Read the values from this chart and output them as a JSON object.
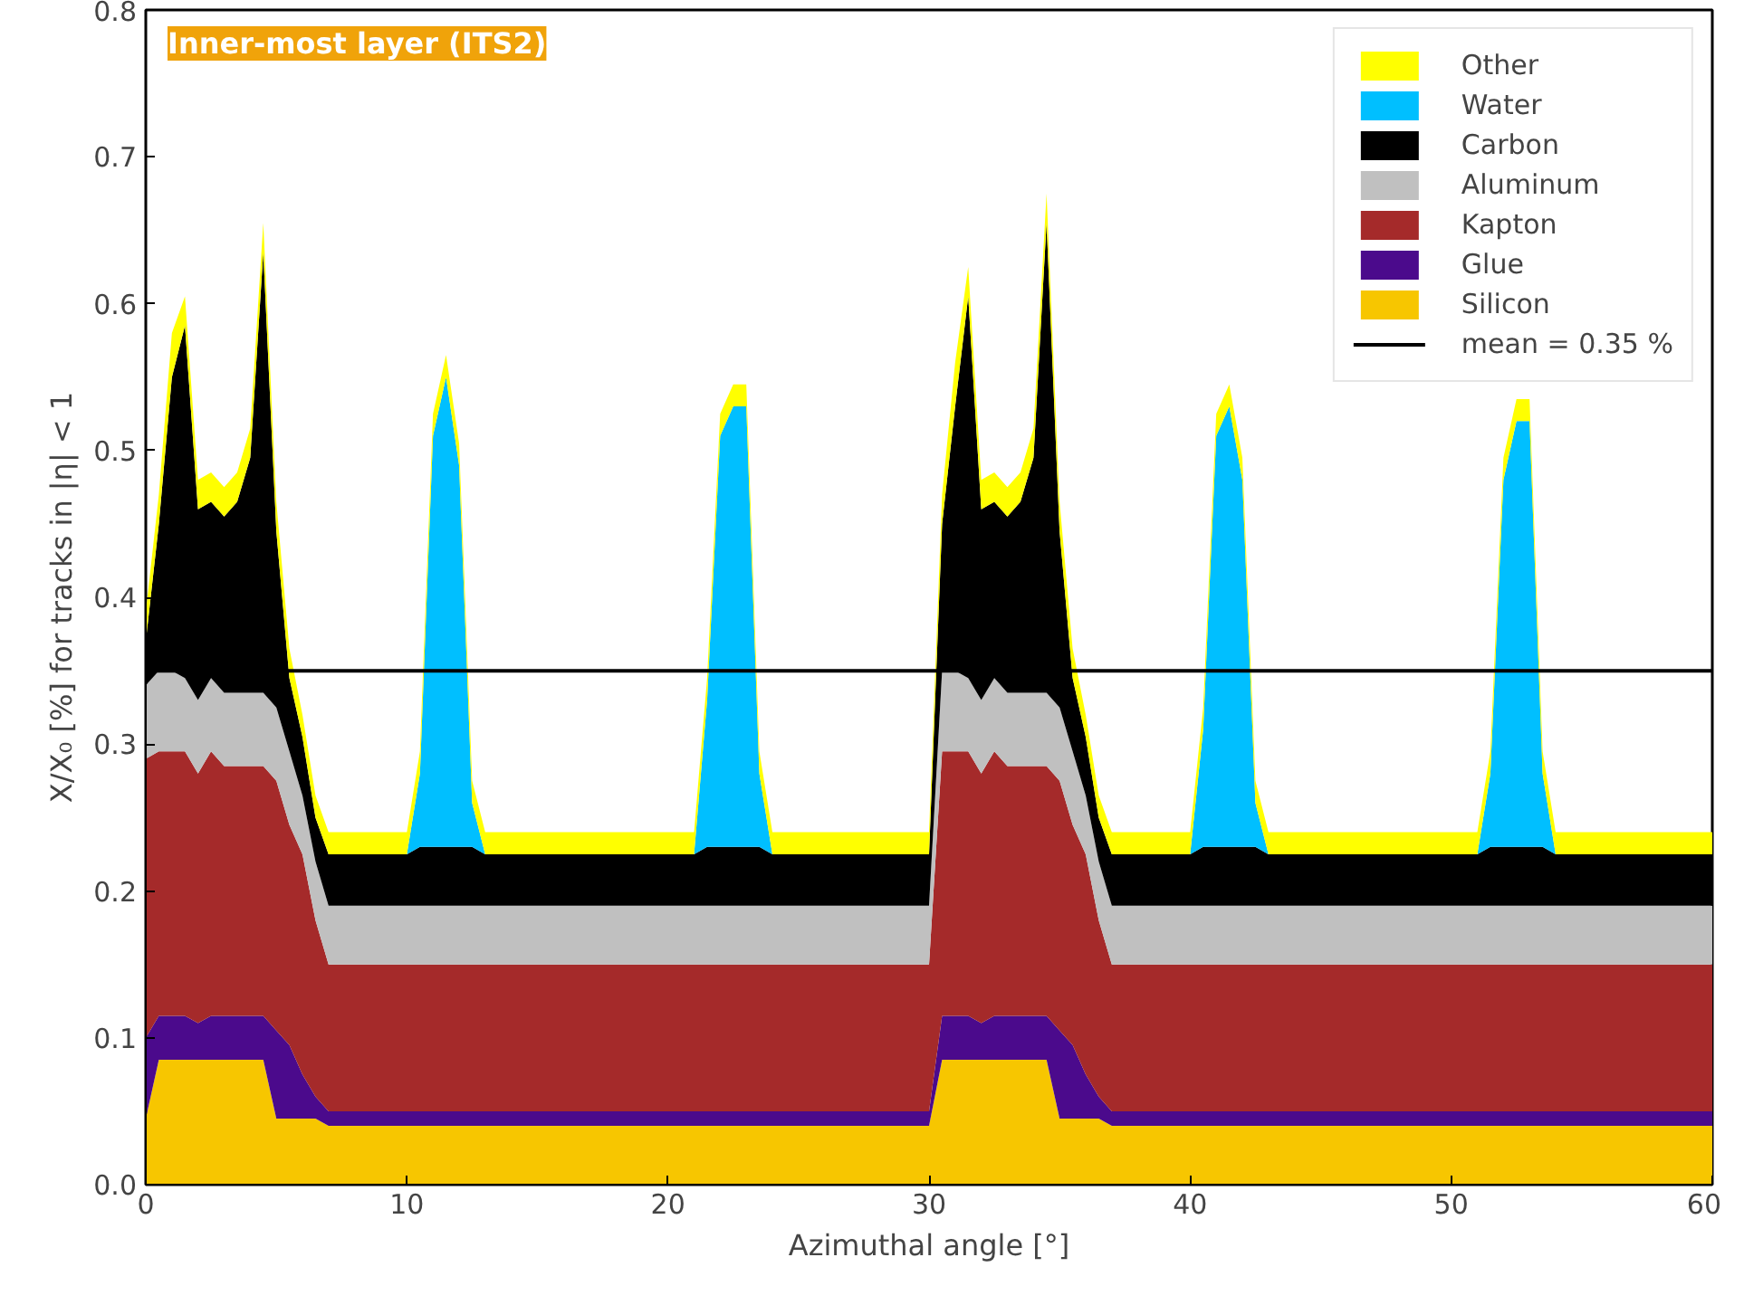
{
  "chart_data": {
    "type": "area",
    "stacked": true,
    "xlabel": "Azimuthal angle [°]",
    "ylabel": "X/X₀ [%] for tracks in |η| < 1",
    "annotations": [
      "Inner-most layer (ITS2)"
    ],
    "xlim": [
      0,
      60
    ],
    "ylim": [
      0,
      0.8
    ],
    "xticks": [
      0,
      10,
      20,
      30,
      40,
      50,
      60
    ],
    "yticks": [
      {
        "value": 0,
        "label": "0.0"
      },
      {
        "value": 0.1,
        "label": "0.1"
      },
      {
        "value": 0.2,
        "label": "0.2"
      },
      {
        "value": 0.3,
        "label": "0.3"
      },
      {
        "value": 0.4,
        "label": "0.4"
      },
      {
        "value": 0.5,
        "label": "0.5"
      },
      {
        "value": 0.6,
        "label": "0.6"
      },
      {
        "value": 0.7,
        "label": "0.7"
      },
      {
        "value": 0.8,
        "label": "0.8"
      }
    ],
    "grid": false,
    "legend": "top right",
    "ref_lines": [
      {
        "axis": "y",
        "value": 0.35,
        "label": "mean = 0.35 %",
        "color": "#000000",
        "line_style": "solid"
      }
    ],
    "x": [
      0,
      0.5,
      1,
      1.5,
      2,
      2.5,
      3,
      3.5,
      4,
      4.5,
      5,
      5.5,
      6,
      6.5,
      7,
      8,
      9,
      10,
      10.5,
      11,
      11.5,
      12,
      12.5,
      13,
      14,
      15,
      16,
      17,
      18,
      19,
      20,
      21,
      21.5,
      22,
      22.5,
      23,
      23.5,
      24,
      25,
      26,
      27,
      28,
      29,
      30,
      30.5,
      31,
      31.5,
      32,
      32.5,
      33,
      33.5,
      34,
      34.5,
      35,
      35.5,
      36,
      36.5,
      37,
      38,
      39,
      40,
      40.5,
      41,
      41.5,
      42,
      42.5,
      43,
      44,
      45,
      46,
      47,
      48,
      49,
      50,
      51,
      51.5,
      52,
      52.5,
      53,
      53.5,
      54,
      55,
      56,
      57,
      58,
      59,
      60
    ],
    "series": [
      {
        "name": "Silicon",
        "color": "#f7c600",
        "values": [
          0.045,
          0.085,
          0.085,
          0.085,
          0.085,
          0.085,
          0.085,
          0.085,
          0.085,
          0.085,
          0.045,
          0.045,
          0.045,
          0.045,
          0.04,
          0.04,
          0.04,
          0.04,
          0.04,
          0.04,
          0.04,
          0.04,
          0.04,
          0.04,
          0.04,
          0.04,
          0.04,
          0.04,
          0.04,
          0.04,
          0.04,
          0.04,
          0.04,
          0.04,
          0.04,
          0.04,
          0.04,
          0.04,
          0.04,
          0.04,
          0.04,
          0.04,
          0.04,
          0.04,
          0.085,
          0.085,
          0.085,
          0.085,
          0.085,
          0.085,
          0.085,
          0.085,
          0.085,
          0.045,
          0.045,
          0.045,
          0.045,
          0.04,
          0.04,
          0.04,
          0.04,
          0.04,
          0.04,
          0.04,
          0.04,
          0.04,
          0.04,
          0.04,
          0.04,
          0.04,
          0.04,
          0.04,
          0.04,
          0.04,
          0.04,
          0.04,
          0.04,
          0.04,
          0.04,
          0.04,
          0.04,
          0.04,
          0.04,
          0.04,
          0.04,
          0.04,
          0.04
        ]
      },
      {
        "name": "Glue",
        "color": "#4b0a8c",
        "values": [
          0.055,
          0.03,
          0.03,
          0.03,
          0.025,
          0.03,
          0.03,
          0.03,
          0.03,
          0.03,
          0.06,
          0.05,
          0.03,
          0.015,
          0.01,
          0.01,
          0.01,
          0.01,
          0.01,
          0.01,
          0.01,
          0.01,
          0.01,
          0.01,
          0.01,
          0.01,
          0.01,
          0.01,
          0.01,
          0.01,
          0.01,
          0.01,
          0.01,
          0.01,
          0.01,
          0.01,
          0.01,
          0.01,
          0.01,
          0.01,
          0.01,
          0.01,
          0.01,
          0.01,
          0.03,
          0.03,
          0.03,
          0.025,
          0.03,
          0.03,
          0.03,
          0.03,
          0.03,
          0.06,
          0.05,
          0.03,
          0.015,
          0.01,
          0.01,
          0.01,
          0.01,
          0.01,
          0.01,
          0.01,
          0.01,
          0.01,
          0.01,
          0.01,
          0.01,
          0.01,
          0.01,
          0.01,
          0.01,
          0.01,
          0.01,
          0.01,
          0.01,
          0.01,
          0.01,
          0.01,
          0.01,
          0.01,
          0.01,
          0.01,
          0.01,
          0.01,
          0.01
        ]
      },
      {
        "name": "Kapton",
        "color": "#a52a2a",
        "values": [
          0.19,
          0.18,
          0.18,
          0.18,
          0.17,
          0.18,
          0.17,
          0.17,
          0.17,
          0.17,
          0.17,
          0.15,
          0.15,
          0.12,
          0.1,
          0.1,
          0.1,
          0.1,
          0.1,
          0.1,
          0.1,
          0.1,
          0.1,
          0.1,
          0.1,
          0.1,
          0.1,
          0.1,
          0.1,
          0.1,
          0.1,
          0.1,
          0.1,
          0.1,
          0.1,
          0.1,
          0.1,
          0.1,
          0.1,
          0.1,
          0.1,
          0.1,
          0.1,
          0.1,
          0.18,
          0.18,
          0.18,
          0.17,
          0.18,
          0.17,
          0.17,
          0.17,
          0.17,
          0.17,
          0.15,
          0.15,
          0.12,
          0.1,
          0.1,
          0.1,
          0.1,
          0.1,
          0.1,
          0.1,
          0.1,
          0.1,
          0.1,
          0.1,
          0.1,
          0.1,
          0.1,
          0.1,
          0.1,
          0.1,
          0.1,
          0.1,
          0.1,
          0.1,
          0.1,
          0.1,
          0.1,
          0.1,
          0.1,
          0.1,
          0.1,
          0.1,
          0.1
        ]
      },
      {
        "name": "Aluminum",
        "color": "#c0c0c0",
        "values": [
          0.05,
          0.055,
          0.055,
          0.05,
          0.05,
          0.05,
          0.05,
          0.05,
          0.05,
          0.05,
          0.05,
          0.05,
          0.04,
          0.04,
          0.04,
          0.04,
          0.04,
          0.04,
          0.04,
          0.04,
          0.04,
          0.04,
          0.04,
          0.04,
          0.04,
          0.04,
          0.04,
          0.04,
          0.04,
          0.04,
          0.04,
          0.04,
          0.04,
          0.04,
          0.04,
          0.04,
          0.04,
          0.04,
          0.04,
          0.04,
          0.04,
          0.04,
          0.04,
          0.04,
          0.055,
          0.055,
          0.05,
          0.05,
          0.05,
          0.05,
          0.05,
          0.05,
          0.05,
          0.05,
          0.05,
          0.04,
          0.04,
          0.04,
          0.04,
          0.04,
          0.04,
          0.04,
          0.04,
          0.04,
          0.04,
          0.04,
          0.04,
          0.04,
          0.04,
          0.04,
          0.04,
          0.04,
          0.04,
          0.04,
          0.04,
          0.04,
          0.04,
          0.04,
          0.04,
          0.04,
          0.04,
          0.04,
          0.04,
          0.04,
          0.04,
          0.04,
          0.04
        ]
      },
      {
        "name": "Carbon",
        "color": "#000000",
        "values": [
          0.03,
          0.1,
          0.2,
          0.24,
          0.13,
          0.12,
          0.12,
          0.13,
          0.16,
          0.3,
          0.12,
          0.05,
          0.04,
          0.03,
          0.035,
          0.035,
          0.035,
          0.035,
          0.04,
          0.04,
          0.04,
          0.04,
          0.04,
          0.035,
          0.035,
          0.035,
          0.035,
          0.035,
          0.035,
          0.035,
          0.035,
          0.035,
          0.04,
          0.04,
          0.04,
          0.04,
          0.04,
          0.035,
          0.035,
          0.035,
          0.035,
          0.035,
          0.035,
          0.035,
          0.1,
          0.18,
          0.26,
          0.13,
          0.12,
          0.12,
          0.13,
          0.16,
          0.32,
          0.12,
          0.05,
          0.04,
          0.03,
          0.035,
          0.035,
          0.035,
          0.035,
          0.04,
          0.04,
          0.04,
          0.04,
          0.04,
          0.035,
          0.035,
          0.035,
          0.035,
          0.035,
          0.035,
          0.035,
          0.035,
          0.035,
          0.04,
          0.04,
          0.04,
          0.04,
          0.04,
          0.035,
          0.035,
          0.035,
          0.035,
          0.035,
          0.035,
          0.035
        ]
      },
      {
        "name": "Water",
        "color": "#00bfff",
        "values": [
          0,
          0,
          0,
          0,
          0,
          0,
          0,
          0,
          0,
          0,
          0,
          0,
          0,
          0,
          0,
          0,
          0,
          0,
          0.05,
          0.28,
          0.32,
          0.26,
          0.03,
          0,
          0,
          0,
          0,
          0,
          0,
          0,
          0,
          0,
          0.1,
          0.28,
          0.3,
          0.3,
          0.05,
          0,
          0,
          0,
          0,
          0,
          0,
          0,
          0,
          0,
          0,
          0,
          0,
          0,
          0,
          0,
          0,
          0,
          0,
          0,
          0,
          0,
          0,
          0,
          0,
          0.08,
          0.28,
          0.3,
          0.25,
          0.03,
          0,
          0,
          0,
          0,
          0,
          0,
          0,
          0,
          0,
          0.05,
          0.25,
          0.29,
          0.29,
          0.05,
          0,
          0,
          0,
          0,
          0,
          0,
          0
        ]
      },
      {
        "name": "Other",
        "color": "#ffff00",
        "values": [
          0.02,
          0.02,
          0.03,
          0.02,
          0.02,
          0.02,
          0.02,
          0.02,
          0.02,
          0.02,
          0.02,
          0.02,
          0.015,
          0.015,
          0.015,
          0.015,
          0.015,
          0.015,
          0.015,
          0.015,
          0.015,
          0.015,
          0.015,
          0.015,
          0.015,
          0.015,
          0.015,
          0.015,
          0.015,
          0.015,
          0.015,
          0.015,
          0.015,
          0.015,
          0.015,
          0.015,
          0.015,
          0.015,
          0.015,
          0.015,
          0.015,
          0.015,
          0.015,
          0.015,
          0.02,
          0.03,
          0.02,
          0.02,
          0.02,
          0.02,
          0.02,
          0.02,
          0.02,
          0.02,
          0.02,
          0.015,
          0.015,
          0.015,
          0.015,
          0.015,
          0.015,
          0.015,
          0.015,
          0.015,
          0.015,
          0.015,
          0.015,
          0.015,
          0.015,
          0.015,
          0.015,
          0.015,
          0.015,
          0.015,
          0.015,
          0.015,
          0.015,
          0.015,
          0.015,
          0.015,
          0.015,
          0.015,
          0.015,
          0.015,
          0.015,
          0.015,
          0.015
        ]
      }
    ]
  }
}
